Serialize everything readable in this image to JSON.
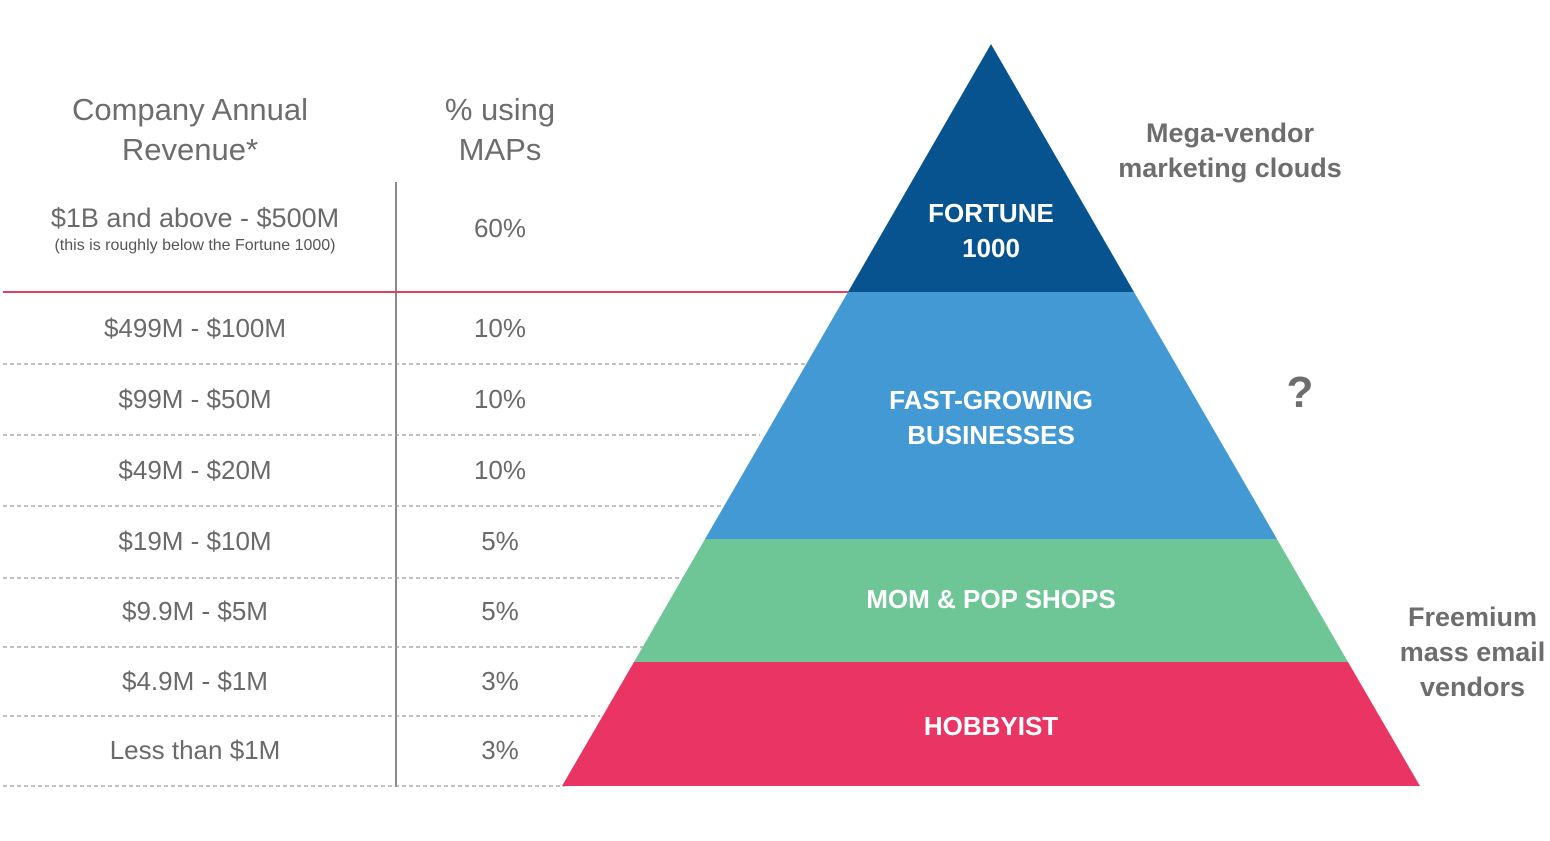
{
  "table": {
    "header_revenue": [
      "Company Annual",
      "Revenue*"
    ],
    "header_pct": [
      "% using",
      "MAPs"
    ],
    "rows": [
      {
        "revenue": "$1B and above - $500M",
        "note": "(this is roughly below the Fortune 1000)",
        "pct": "60%"
      },
      {
        "revenue": "$499M - $100M",
        "pct": "10%"
      },
      {
        "revenue": "$99M - $50M",
        "pct": "10%"
      },
      {
        "revenue": "$49M - $20M",
        "pct": "10%"
      },
      {
        "revenue": "$19M - $10M",
        "pct": "5%"
      },
      {
        "revenue": "$9.9M - $5M",
        "pct": "5%"
      },
      {
        "revenue": "$4.9M - $1M",
        "pct": "3%"
      },
      {
        "revenue": "Less than $1M",
        "pct": "3%"
      }
    ]
  },
  "pyramid": {
    "tiers": [
      {
        "label": [
          "FORTUNE",
          "1000"
        ],
        "color": "#07538f"
      },
      {
        "label": [
          "FAST-GROWING",
          "BUSINESSES"
        ],
        "color": "#4399d4"
      },
      {
        "label": [
          "MOM & POP SHOPS"
        ],
        "color": "#6ec596"
      },
      {
        "label": [
          "HOBBYIST"
        ],
        "color": "#ea3564"
      }
    ]
  },
  "side_notes": {
    "top": [
      "Mega-vendor",
      "marketing clouds"
    ],
    "middle": "?",
    "bottom": [
      "Freemium",
      "mass email",
      "vendors"
    ]
  },
  "colors": {
    "divider_red": "#e0405e",
    "grid_dash": "#9a9a9a",
    "text": "#6a6a6a"
  }
}
